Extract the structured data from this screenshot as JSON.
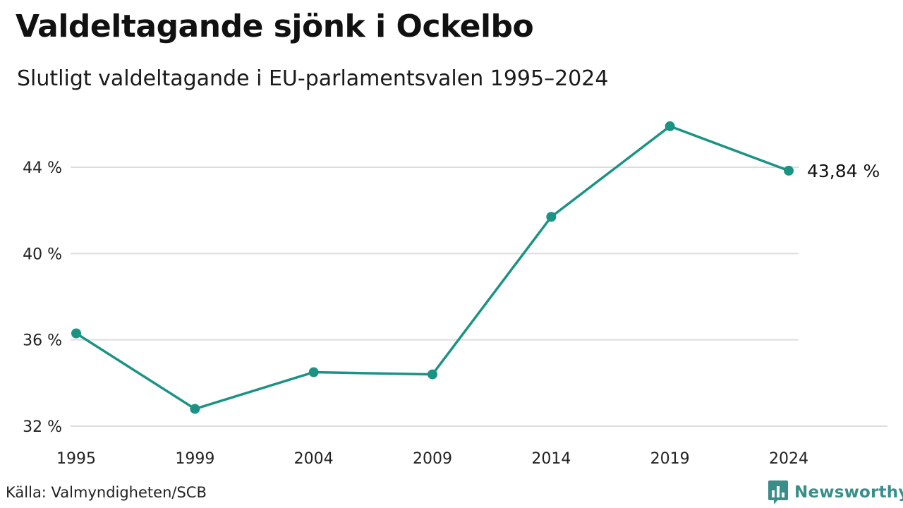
{
  "header": {
    "title": "Valdeltagande sjönk i Ockelbo",
    "subtitle": "Slutligt valdeltagande i EU-parlamentsvalen 1995–2024"
  },
  "footer": {
    "source": "Källa: Valmyndigheten/SCB",
    "brand": "Newsworthy",
    "brand_icon": "bar-chart-bubble-icon"
  },
  "colors": {
    "line": "#1b9384",
    "grid": "#dddddd",
    "brand": "#3a8e8a"
  },
  "chart_data": {
    "type": "line",
    "x": [
      "1995",
      "1999",
      "2004",
      "2009",
      "2014",
      "2019",
      "2024"
    ],
    "series": [
      {
        "values": [
          36.3,
          32.8,
          34.5,
          34.4,
          41.7,
          45.9,
          43.84
        ]
      }
    ],
    "xlabel": "",
    "ylabel": "",
    "ylim": [
      32,
      46
    ],
    "yticks": [
      32,
      36,
      40,
      44
    ],
    "ytick_labels": [
      "32 %",
      "36 %",
      "40 %",
      "44 %"
    ],
    "grid": true,
    "legend": false,
    "end_label": "43,84 %"
  }
}
